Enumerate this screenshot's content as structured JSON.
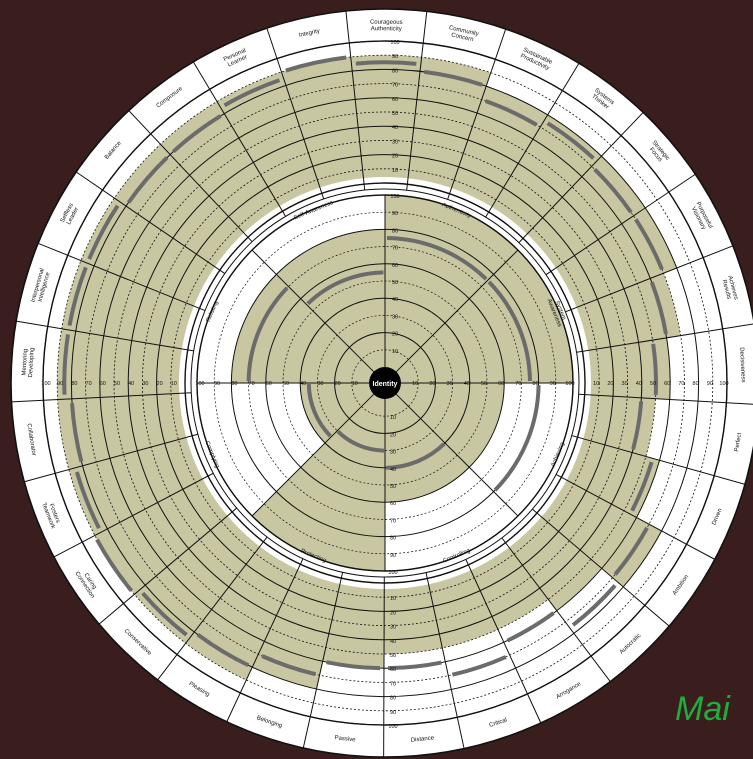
{
  "center_label": "Identity",
  "corner_text": "Mai",
  "colors": {
    "background": "#3a1e1e",
    "shading": "#c9c7a1",
    "line": "#111111",
    "score_arc": "#6b6b6b",
    "corner_text": "#1fae3c"
  },
  "scale": [
    "10",
    "20",
    "30",
    "40",
    "50",
    "60",
    "70",
    "80",
    "90",
    "100"
  ],
  "inner_sectors": [
    {
      "label": "Authenticity",
      "score": 75,
      "shaded_to": 100
    },
    {
      "label": "System Awareness",
      "score": 75,
      "shaded_to": 100
    },
    {
      "label": "Achieving",
      "score": 80,
      "shaded_to": 60
    },
    {
      "label": "Controlling",
      "score": 40,
      "shaded_to": 60
    },
    {
      "label": "Protecting",
      "score": 30,
      "shaded_to": 100
    },
    {
      "label": "Complying",
      "score": 35,
      "shaded_to": 40
    },
    {
      "label": "Relating",
      "score": 70,
      "shaded_to": 80
    },
    {
      "label": "Self-Awareness",
      "score": 55,
      "shaded_to": 80
    }
  ],
  "outer_sectors": [
    {
      "label": "Courageous Authenticity",
      "score": 85,
      "shaded_to": 90
    },
    {
      "label": "Community Concern",
      "score": 80,
      "shaded_to": 90
    },
    {
      "label": "Sustainable Productivity",
      "score": 70,
      "shaded_to": 80
    },
    {
      "label": "Systems Thinker",
      "score": 75,
      "shaded_to": 80
    },
    {
      "label": "Strategic Focus",
      "score": 70,
      "shaded_to": 80
    },
    {
      "label": "Purposeful Visionary",
      "score": 70,
      "shaded_to": 80
    },
    {
      "label": "Achieves Results",
      "score": 60,
      "shaded_to": 70
    },
    {
      "label": "Decisiveness",
      "score": 50,
      "shaded_to": 60
    },
    {
      "label": "Perfect",
      "score": 40,
      "shaded_to": 50
    },
    {
      "label": "Driven",
      "score": 55,
      "shaded_to": 60
    },
    {
      "label": "Ambition",
      "score": 70,
      "shaded_to": 80
    },
    {
      "label": "Autocratic",
      "score": 75,
      "shaded_to": 60
    },
    {
      "label": "Arrogance",
      "score": 60,
      "shaded_to": 50
    },
    {
      "label": "Critical",
      "score": 70,
      "shaded_to": 50
    },
    {
      "label": "Distance",
      "score": 60,
      "shaded_to": 50
    },
    {
      "label": "Passive",
      "score": 60,
      "shaded_to": 60
    },
    {
      "label": "Belonging",
      "score": 70,
      "shaded_to": 80
    },
    {
      "label": "Pleasing",
      "score": 80,
      "shaded_to": 90
    },
    {
      "label": "Conservative",
      "score": 85,
      "shaded_to": 90
    },
    {
      "label": "Caring Connection",
      "score": 90,
      "shaded_to": 90
    },
    {
      "label": "Fosters Teamwork",
      "score": 85,
      "shaded_to": 90
    },
    {
      "label": "Collaborator",
      "score": 80,
      "shaded_to": 90
    },
    {
      "label": "Mentoring Developing",
      "score": 85,
      "shaded_to": 90
    },
    {
      "label": "Interpersonal Intelligence",
      "score": 85,
      "shaded_to": 90
    },
    {
      "label": "Selfless Leader",
      "score": 85,
      "shaded_to": 90
    },
    {
      "label": "Balance",
      "score": 80,
      "shaded_to": 90
    },
    {
      "label": "Composure",
      "score": 80,
      "shaded_to": 90
    },
    {
      "label": "Personal Learner",
      "score": 85,
      "shaded_to": 90
    },
    {
      "label": "Integrity",
      "score": 90,
      "shaded_to": 90
    }
  ]
}
